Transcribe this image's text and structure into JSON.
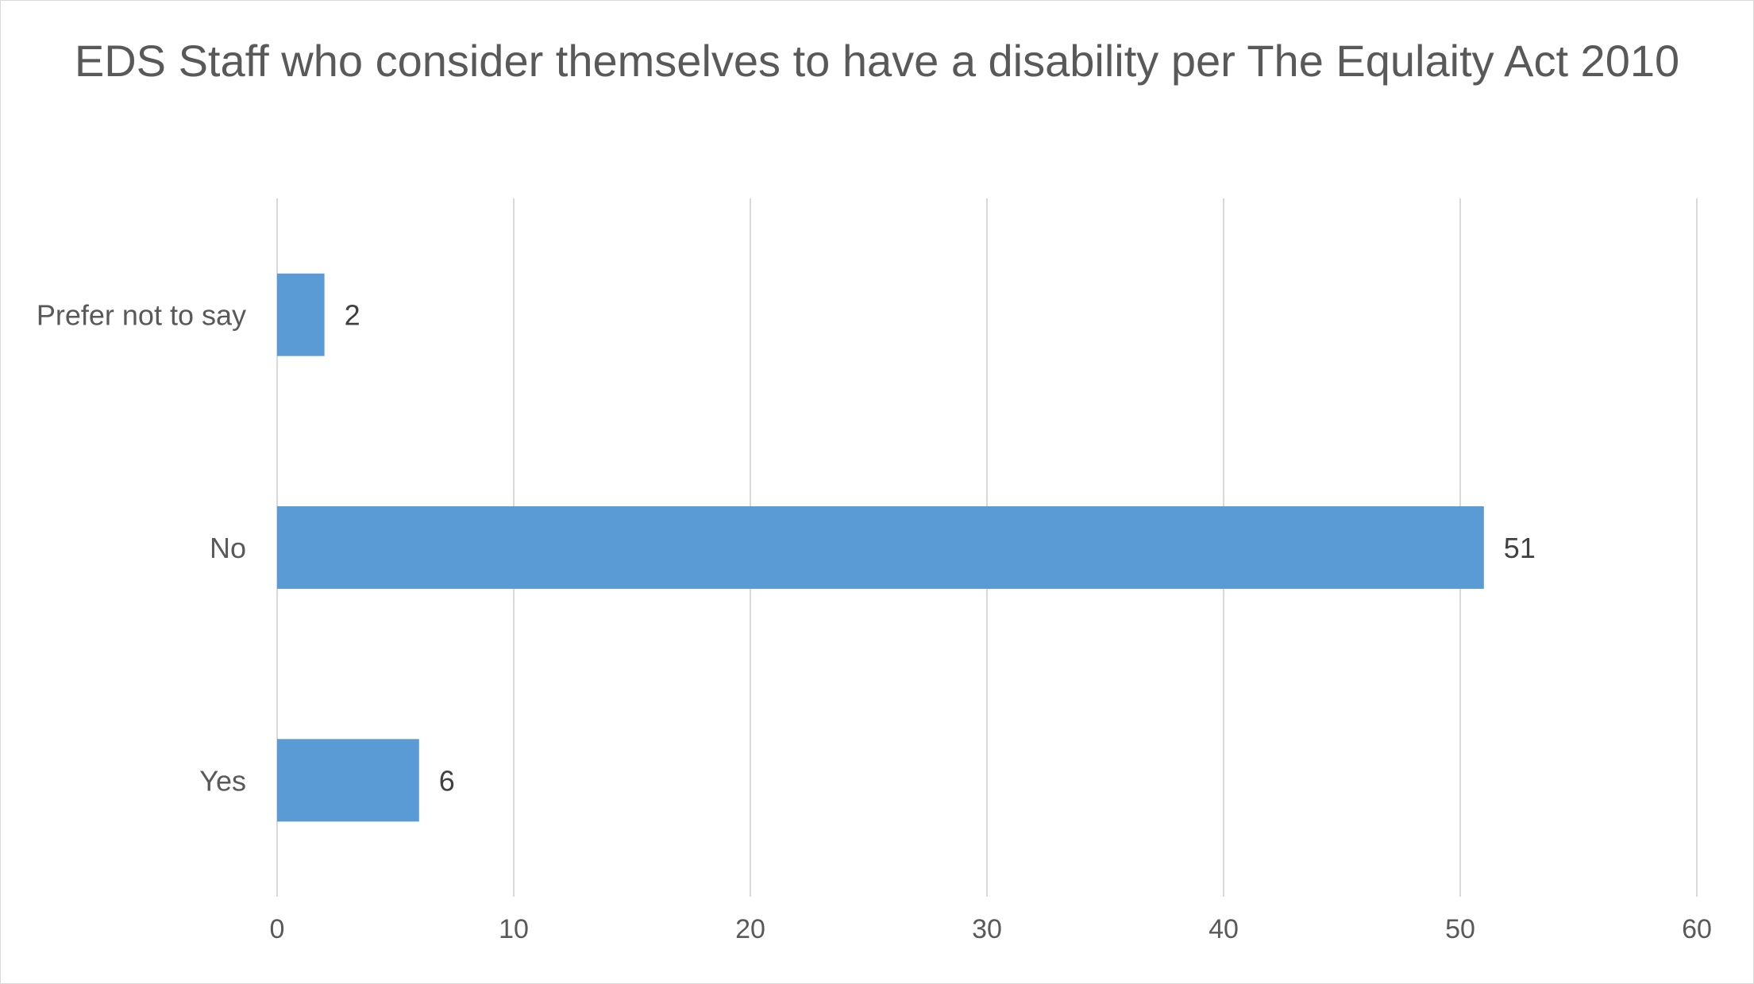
{
  "chart_data": {
    "type": "bar",
    "orientation": "horizontal",
    "title": "EDS Staff who consider themselves to have a disability per The Equlaity Act 2010",
    "categories": [
      "Prefer not to say",
      "No",
      "Yes"
    ],
    "values": [
      2,
      51,
      6
    ],
    "data_labels": [
      "2",
      "51",
      "6"
    ],
    "xlim": [
      0,
      60
    ],
    "x_ticks": [
      0,
      10,
      20,
      30,
      40,
      50,
      60
    ],
    "x_tick_labels": [
      "0",
      "10",
      "20",
      "30",
      "40",
      "50",
      "60"
    ],
    "grid": true,
    "legend": "none",
    "bar_color": "#5b9bd5",
    "gridline_color": "#d9d9d9",
    "text_color": "#595959"
  }
}
